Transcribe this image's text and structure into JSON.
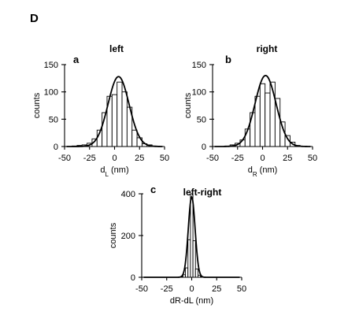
{
  "figure": {
    "letter": "D"
  },
  "chart_data": [
    {
      "type": "bar",
      "panel": "a",
      "title": "left",
      "xlabel_main": "d",
      "xlabel_sub": "L",
      "xlabel_unit": " (nm)",
      "ylabel": "counts",
      "xlim": [
        -50,
        50
      ],
      "ylim": [
        0,
        150
      ],
      "xticks": [
        -50,
        -25,
        0,
        25,
        50
      ],
      "yticks": [
        0,
        50,
        100,
        150
      ],
      "bin_width": 5,
      "bin_centers": [
        -40,
        -35,
        -30,
        -25,
        -20,
        -15,
        -10,
        -5,
        0,
        5,
        10,
        15,
        20,
        25,
        30,
        35,
        40
      ],
      "values": [
        1,
        2,
        3,
        6,
        14,
        30,
        62,
        92,
        95,
        118,
        100,
        72,
        30,
        16,
        5,
        3,
        1
      ],
      "fit": {
        "type": "gaussian",
        "amplitude": 128,
        "mean": 4,
        "sigma": 10.5
      }
    },
    {
      "type": "bar",
      "panel": "b",
      "title": "right",
      "xlabel_main": "d",
      "xlabel_sub": "R",
      "xlabel_unit": " (nm)",
      "ylabel": "counts",
      "xlim": [
        -50,
        50
      ],
      "ylim": [
        0,
        150
      ],
      "xticks": [
        -50,
        -25,
        0,
        25,
        50
      ],
      "yticks": [
        0,
        50,
        100,
        150
      ],
      "bin_width": 5,
      "bin_centers": [
        -35,
        -30,
        -25,
        -20,
        -15,
        -10,
        -5,
        0,
        5,
        10,
        15,
        20,
        25,
        30,
        35
      ],
      "values": [
        1,
        3,
        6,
        12,
        32,
        62,
        92,
        115,
        98,
        118,
        88,
        45,
        20,
        8,
        2
      ],
      "fit": {
        "type": "gaussian",
        "amplitude": 130,
        "mean": 3,
        "sigma": 10.5
      }
    },
    {
      "type": "bar",
      "panel": "c",
      "title": "left-right",
      "xlabel_main": "dR-dL (nm)",
      "ylabel": "counts",
      "xlim": [
        -50,
        50
      ],
      "ylim": [
        0,
        400
      ],
      "xticks": [
        -50,
        -25,
        0,
        25,
        50
      ],
      "yticks": [
        0,
        200,
        400
      ],
      "bin_width": 2.5,
      "bin_centers": [
        -10,
        -7.5,
        -5,
        -2.5,
        0,
        2.5,
        5,
        7.5,
        10
      ],
      "values": [
        3,
        12,
        45,
        180,
        400,
        175,
        40,
        10,
        2
      ],
      "fit": {
        "type": "gaussian",
        "amplitude": 385,
        "mean": 0,
        "sigma": 3.4
      }
    }
  ]
}
